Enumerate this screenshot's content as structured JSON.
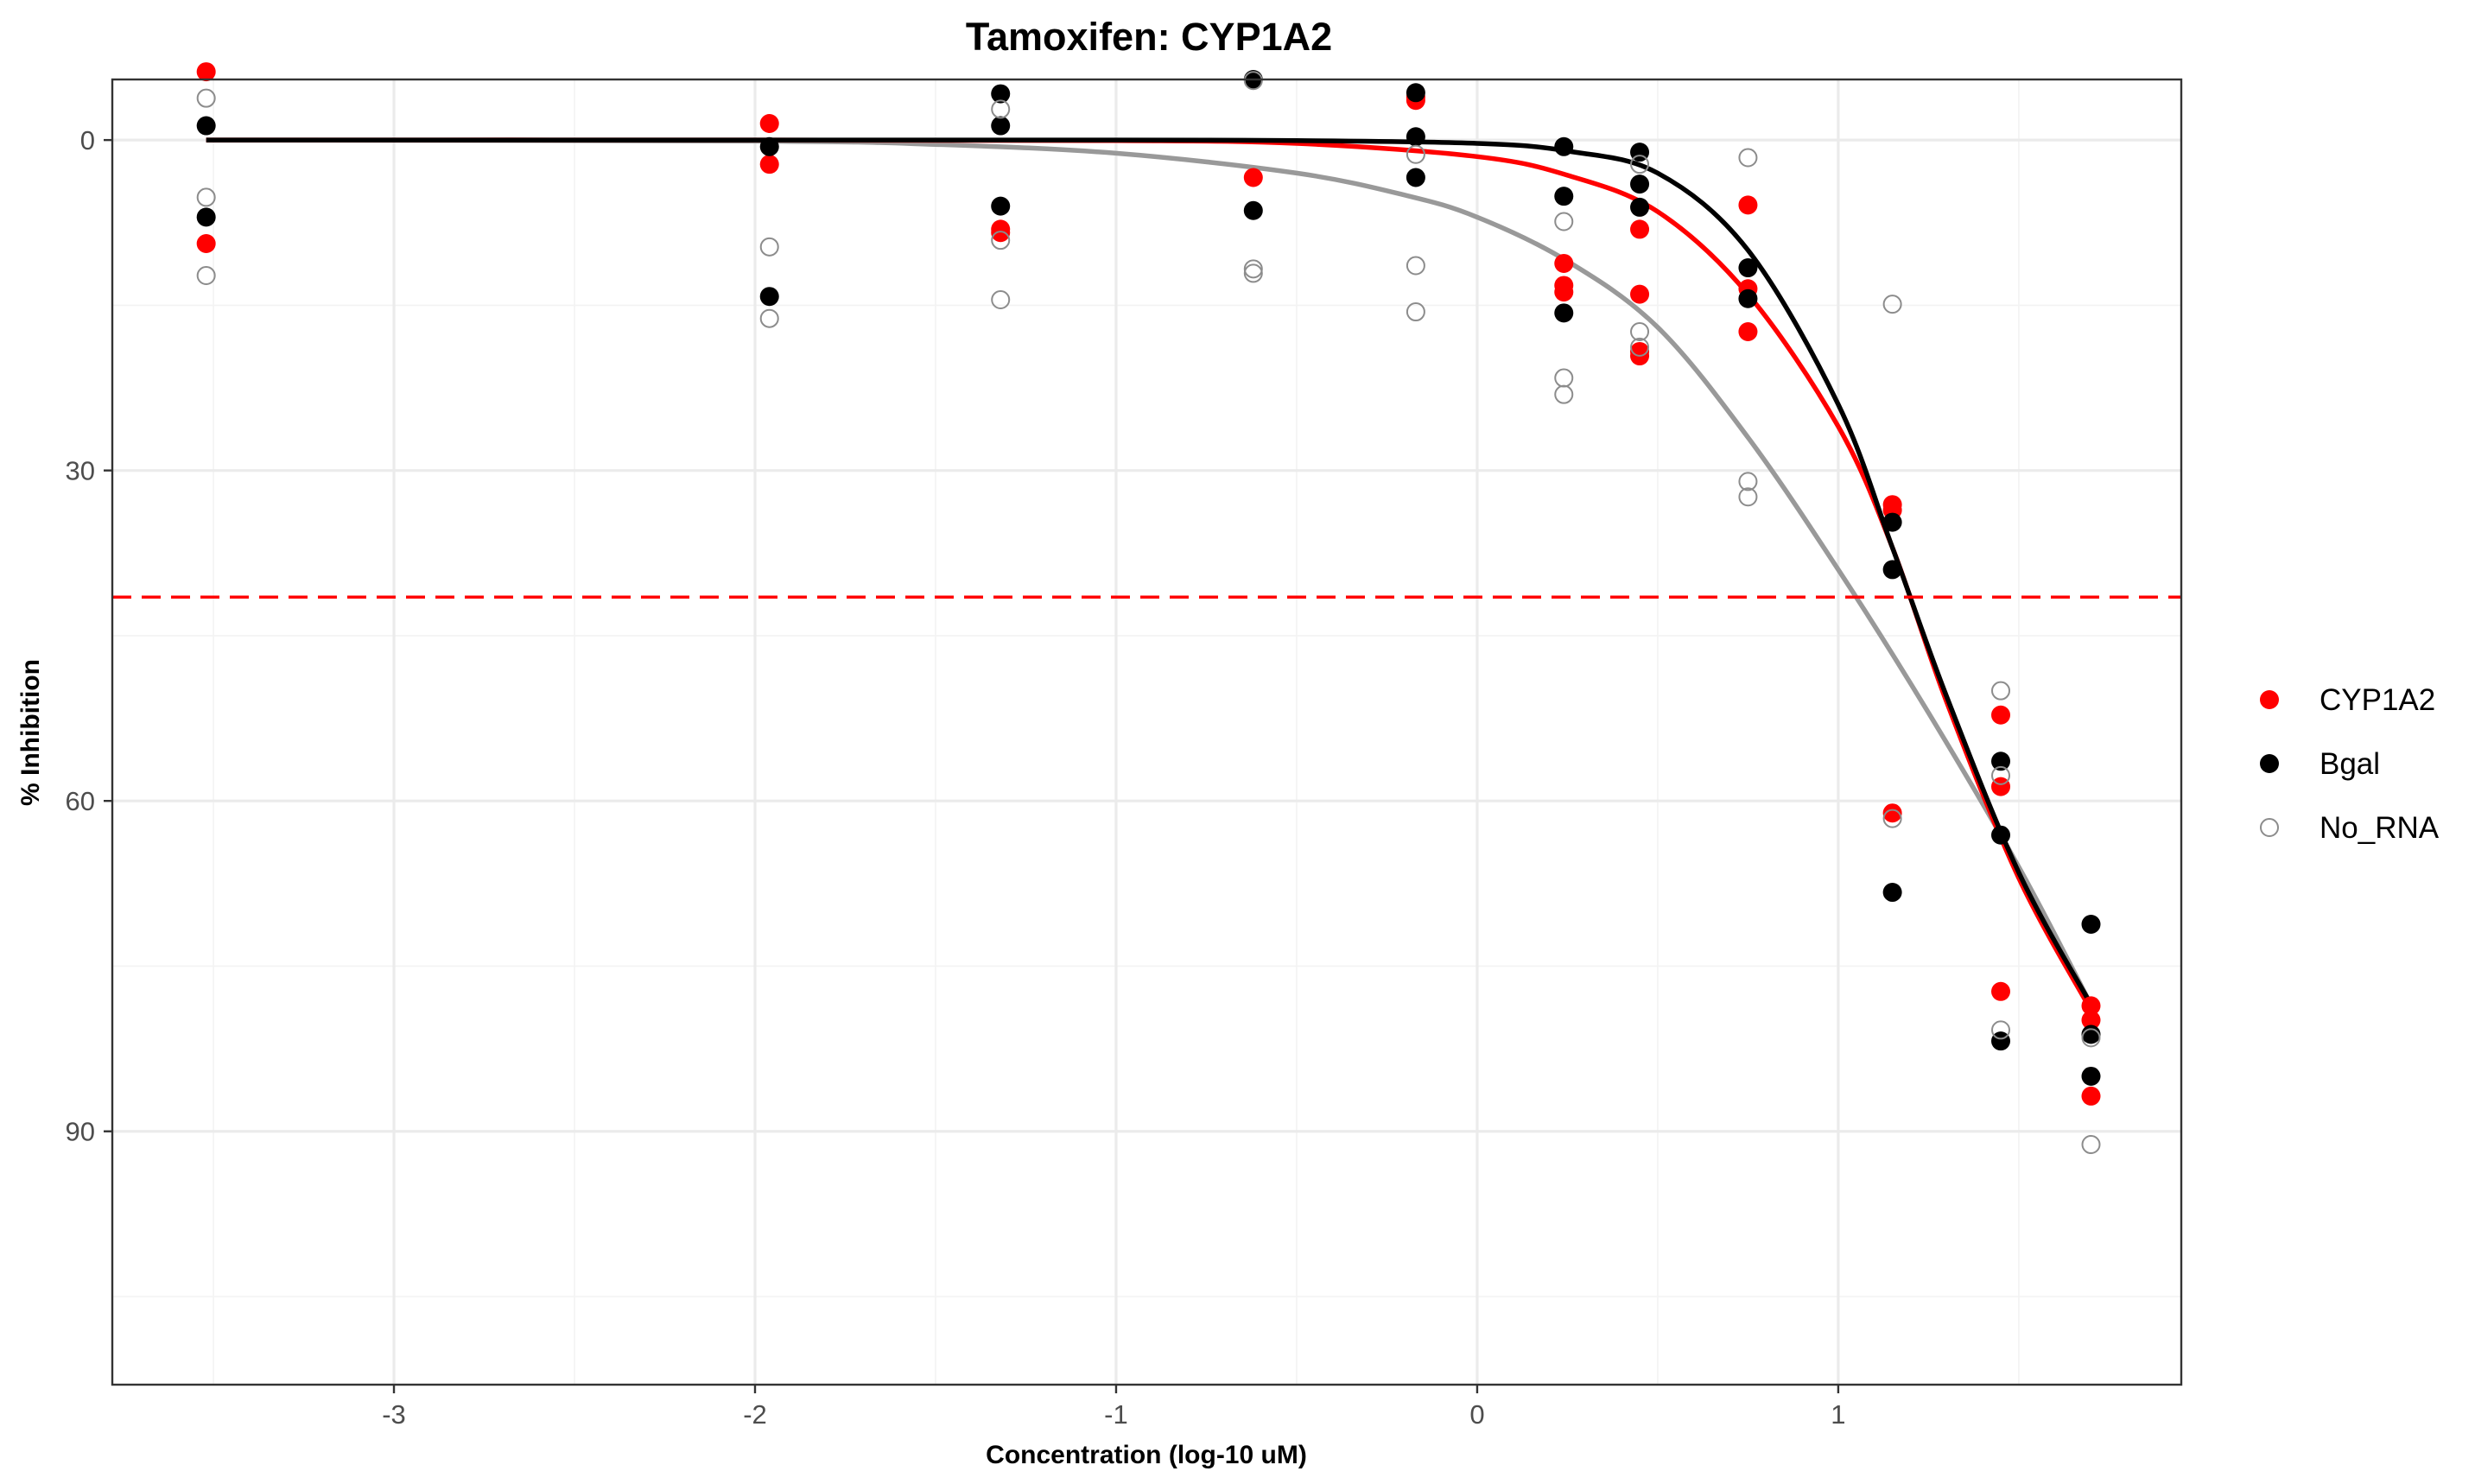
{
  "chart_data": {
    "type": "scatter",
    "title": "Tamoxifen: CYP1A2",
    "xlabel": "Concentration (log-10 uM)",
    "ylabel": "% Inhibition",
    "xlim": [
      -3.78,
      1.95
    ],
    "ylim": [
      113,
      -5.5
    ],
    "y_reversed": true,
    "x_ticks": [
      -3,
      -2,
      -1,
      0,
      1
    ],
    "y_ticks": [
      0,
      30,
      60,
      90
    ],
    "grid": true,
    "legend_position": "right",
    "threshold_line": {
      "y": 41.5,
      "color": "#ff0000",
      "style": "dashed"
    },
    "series": [
      {
        "name": "CYP1A2",
        "color": "#ff0000",
        "marker": "filled",
        "points": [
          [
            -3.52,
            -6.2
          ],
          [
            -3.52,
            9.4
          ],
          [
            -1.96,
            -1.5
          ],
          [
            -1.96,
            2.2
          ],
          [
            -1.32,
            8.1
          ],
          [
            -1.32,
            8.4
          ],
          [
            -0.62,
            3.4
          ],
          [
            -0.17,
            -3.6
          ],
          [
            -0.17,
            -3.9
          ],
          [
            0.24,
            11.2
          ],
          [
            0.24,
            13.2
          ],
          [
            0.24,
            13.8
          ],
          [
            0.45,
            8.1
          ],
          [
            0.45,
            14.0
          ],
          [
            0.45,
            19.2
          ],
          [
            0.45,
            19.6
          ],
          [
            0.75,
            5.9
          ],
          [
            0.75,
            13.5
          ],
          [
            0.75,
            17.4
          ],
          [
            1.15,
            33.1
          ],
          [
            1.15,
            33.6
          ],
          [
            1.15,
            61.1
          ],
          [
            1.45,
            52.2
          ],
          [
            1.45,
            58.7
          ],
          [
            1.45,
            77.3
          ],
          [
            1.7,
            78.6
          ],
          [
            1.7,
            79.9
          ],
          [
            1.7,
            86.8
          ]
        ],
        "curve": [
          [
            -3.52,
            0
          ],
          [
            -2.0,
            0
          ],
          [
            -1.0,
            0.05
          ],
          [
            -0.5,
            0.3
          ],
          [
            0.0,
            1.5
          ],
          [
            0.25,
            3.2
          ],
          [
            0.5,
            6.5
          ],
          [
            0.75,
            14.0
          ],
          [
            1.0,
            26.0
          ],
          [
            1.15,
            37.0
          ],
          [
            1.3,
            51.0
          ],
          [
            1.5,
            67.0
          ],
          [
            1.7,
            79.0
          ]
        ]
      },
      {
        "name": "Bgal",
        "color": "#000000",
        "marker": "filled",
        "points": [
          [
            -3.52,
            -1.3
          ],
          [
            -3.52,
            7.0
          ],
          [
            -1.96,
            0.6
          ],
          [
            -1.96,
            14.2
          ],
          [
            -1.32,
            -4.2
          ],
          [
            -1.32,
            -1.3
          ],
          [
            -1.32,
            6.0
          ],
          [
            -0.62,
            -5.5
          ],
          [
            -0.62,
            6.4
          ],
          [
            -0.17,
            -4.3
          ],
          [
            -0.17,
            -0.3
          ],
          [
            -0.17,
            3.4
          ],
          [
            0.24,
            0.6
          ],
          [
            0.24,
            5.1
          ],
          [
            0.24,
            15.7
          ],
          [
            0.45,
            1.1
          ],
          [
            0.45,
            4.0
          ],
          [
            0.45,
            6.1
          ],
          [
            0.75,
            11.6
          ],
          [
            0.75,
            14.4
          ],
          [
            1.15,
            34.7
          ],
          [
            1.15,
            39.0
          ],
          [
            1.15,
            68.3
          ],
          [
            1.45,
            56.4
          ],
          [
            1.45,
            63.1
          ],
          [
            1.45,
            81.8
          ],
          [
            1.7,
            71.2
          ],
          [
            1.7,
            81.2
          ],
          [
            1.7,
            85.0
          ]
        ],
        "curve": [
          [
            -3.52,
            0
          ],
          [
            -2.0,
            0
          ],
          [
            -1.0,
            0
          ],
          [
            -0.5,
            0.05
          ],
          [
            0.0,
            0.3
          ],
          [
            0.25,
            1.0
          ],
          [
            0.5,
            3.0
          ],
          [
            0.75,
            10.0
          ],
          [
            1.0,
            24.0
          ],
          [
            1.15,
            37.0
          ],
          [
            1.3,
            50.5
          ],
          [
            1.5,
            66.5
          ],
          [
            1.7,
            78.5
          ]
        ]
      },
      {
        "name": "No_RNA",
        "color": "#999999",
        "marker": "open",
        "points": [
          [
            -3.52,
            -3.8
          ],
          [
            -3.52,
            5.2
          ],
          [
            -3.52,
            12.3
          ],
          [
            -1.96,
            9.7
          ],
          [
            -1.96,
            16.2
          ],
          [
            -1.32,
            -2.8
          ],
          [
            -1.32,
            9.1
          ],
          [
            -1.32,
            14.5
          ],
          [
            -0.62,
            -5.4
          ],
          [
            -0.62,
            11.7
          ],
          [
            -0.62,
            12.1
          ],
          [
            -0.17,
            1.3
          ],
          [
            -0.17,
            11.4
          ],
          [
            -0.17,
            15.6
          ],
          [
            0.24,
            7.4
          ],
          [
            0.24,
            21.6
          ],
          [
            0.24,
            23.1
          ],
          [
            0.45,
            2.2
          ],
          [
            0.45,
            17.4
          ],
          [
            0.45,
            18.8
          ],
          [
            0.75,
            1.6
          ],
          [
            0.75,
            31.0
          ],
          [
            0.75,
            32.4
          ],
          [
            1.15,
            14.9
          ],
          [
            1.15,
            61.6
          ],
          [
            1.45,
            50.0
          ],
          [
            1.45,
            57.7
          ],
          [
            1.45,
            80.8
          ],
          [
            1.7,
            81.5
          ],
          [
            1.7,
            91.2
          ]
        ],
        "curve": [
          [
            -3.52,
            0
          ],
          [
            -2.0,
            0.1
          ],
          [
            -1.5,
            0.4
          ],
          [
            -1.0,
            1.2
          ],
          [
            -0.5,
            3.0
          ],
          [
            -0.2,
            5.0
          ],
          [
            0.0,
            7.0
          ],
          [
            0.25,
            11.0
          ],
          [
            0.5,
            17.0
          ],
          [
            0.75,
            27.0
          ],
          [
            1.0,
            39.0
          ],
          [
            1.25,
            52.0
          ],
          [
            1.5,
            66.0
          ],
          [
            1.7,
            78.5
          ]
        ]
      }
    ]
  }
}
